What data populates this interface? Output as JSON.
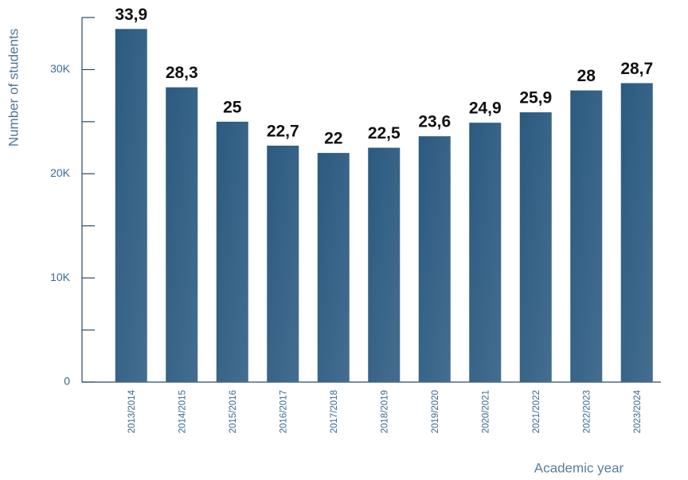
{
  "chart_data": {
    "type": "bar",
    "y_label": "Number of students",
    "x_label": "Academic year",
    "categories": [
      "2013/2014",
      "2014/2015",
      "2015/2016",
      "2016/2017",
      "2017/2018",
      "2018/2019",
      "2019/2020",
      "2020/2021",
      "2021/2022",
      "2022/2023",
      "2023/2024"
    ],
    "values": [
      33900,
      28300,
      25000,
      22700,
      22000,
      22500,
      23600,
      24900,
      25900,
      28000,
      28700
    ],
    "value_labels": [
      "33,9",
      "28,3",
      "25",
      "22,7",
      "22",
      "22,5",
      "23,6",
      "24,9",
      "25,9",
      "28",
      "28,7"
    ],
    "color": "#2b5a80",
    "ylim": [
      0,
      35000
    ],
    "yticks": [
      0,
      {
        "value": 10000,
        "label": "10K"
      },
      {
        "value": 20000,
        "label": "20K"
      },
      {
        "value": 30000,
        "label": "30K"
      }
    ],
    "yminor_ticks": [
      5000,
      15000,
      25000,
      35000
    ]
  }
}
